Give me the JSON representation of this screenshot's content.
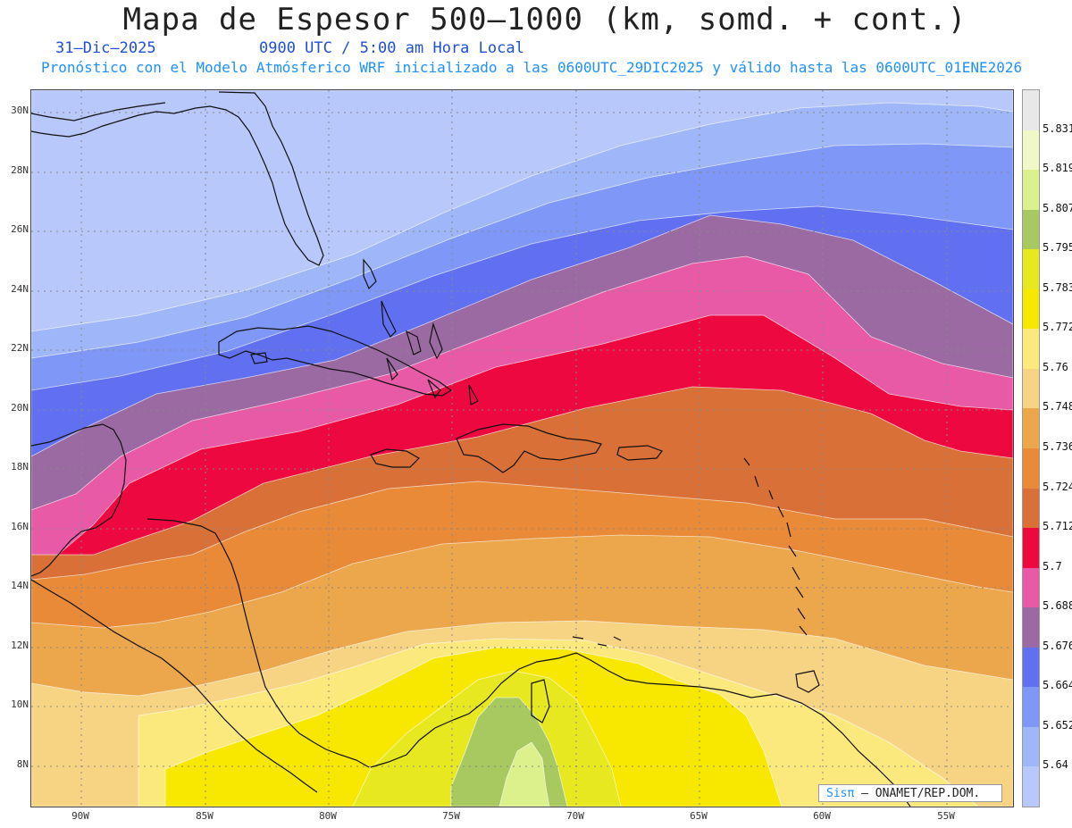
{
  "title": "Mapa de Espesor 500–1000 (km, somd. + cont.)",
  "date": "31–Dic–2025",
  "time": "0900 UTC / 5:00 am Hora Local",
  "subtitle": "Pronóstico con el Modelo Atmósferico WRF inicializado a las 0600UTC_29DIC2025 y válido hasta las  0600UTC_01ENE2026",
  "credit": {
    "brand": "Sisπ",
    "text": " – ONAMET/REP.DOM."
  },
  "map_data": {
    "type": "contour_filled",
    "field": "500-1000 hPa thickness",
    "units": "km",
    "lat_labels": [
      "30N",
      "28N",
      "26N",
      "24N",
      "22N",
      "20N",
      "18N",
      "16N",
      "14N",
      "12N",
      "10N",
      "8N"
    ],
    "lon_labels": [
      "90W",
      "85W",
      "80W",
      "75W",
      "70W",
      "65W",
      "60W",
      "55W"
    ],
    "legend": {
      "levels": [
        "5.831",
        "5.819",
        "5.807",
        "5.795",
        "5.783",
        "5.772",
        "5.76",
        "5.748",
        "5.736",
        "5.724",
        "5.712",
        "5.7",
        "5.688",
        "5.676",
        "5.664",
        "5.652",
        "5.64"
      ],
      "colors": [
        "#e8e8e8",
        "#f0f8c8",
        "#dcf08c",
        "#a8c860",
        "#e8e820",
        "#f8e800",
        "#fbe97e",
        "#f6d484",
        "#eca64b",
        "#e88a38",
        "#d97038",
        "#ee0840",
        "#e85aa6",
        "#9c6aa2",
        "#6070f0",
        "#7f98f8",
        "#9fb6f8",
        "#b8c8fa"
      ]
    },
    "contour_colors": {
      "lt_5640": "#b8c8fa",
      "5640_5652": "#9fb6f8",
      "5652_5664": "#7f98f8",
      "5664_5676": "#6070f0",
      "5676_5688": "#9c6aa2",
      "5688_5700": "#e85aa6",
      "5700_5712": "#ee0840",
      "5712_5724": "#d97038",
      "5724_5736": "#e88a38",
      "5736_5748": "#eca64b",
      "5748_5760": "#f6d484",
      "5760_5772": "#fbe97e",
      "5772_5783": "#f8e800",
      "5783_5795": "#e8e820",
      "5795_5807": "#a8c860",
      "5807_5819": "#dcf08c"
    }
  }
}
